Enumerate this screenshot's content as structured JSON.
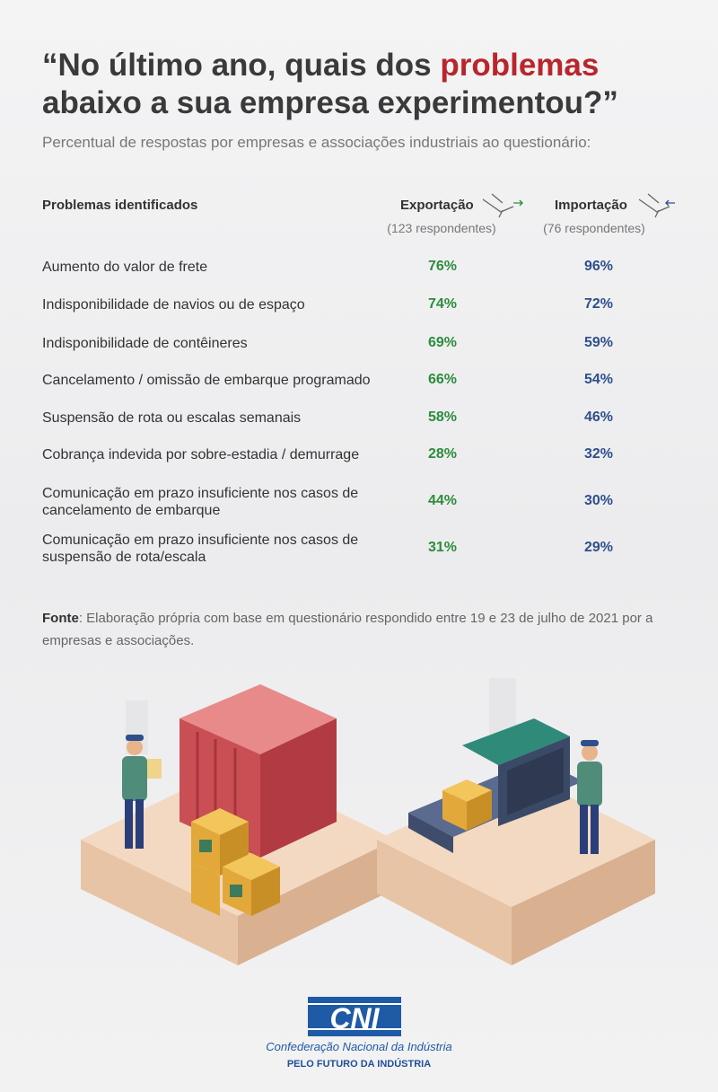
{
  "header": {
    "title_parts": [
      "“No último ano, quais dos ",
      "problemas",
      " abaixo a sua empresa experimentou?”"
    ],
    "subtitle": "Percentual de respostas por empresas e associações industriais ao questionário:"
  },
  "table": {
    "columns": [
      {
        "label": "Problemas identificados"
      },
      {
        "label": "Exportação",
        "note": "(123 respondentes)"
      },
      {
        "label": "Importação",
        "note": "(76 respondentes)"
      }
    ],
    "rows": [
      [
        "Aumento do valor de frete",
        "76%",
        "96%"
      ],
      [
        "Indisponibilidade de navios ou de espaço",
        "74%",
        "72%"
      ],
      [
        "Indisponibilidade de contêineres",
        "69%",
        "59%"
      ],
      [
        "Cancelamento / omissão de embarque programado",
        "66%",
        "54%"
      ],
      [
        "Suspensão de rota ou escalas semanais",
        "58%",
        "46%"
      ],
      [
        "Cobrança indevida por sobre-estadia / demurrage",
        "28%",
        "32%"
      ],
      [
        "Comunicação em prazo insuficiente nos casos de cancelamento de embarque",
        "44%",
        "30%"
      ],
      [
        "Comunicação em prazo insuficiente nos casos de suspensão de rota/escala",
        "31%",
        "29%"
      ]
    ]
  },
  "source": {
    "label": "Fonte",
    "text": ": Elaboração própria com base em questionário respondido entre 19 e 23 de julho de 2021 por a empresas e associações."
  },
  "footer": {
    "logo": "CNI",
    "name": "Confederação Nacional da Indústria",
    "slogan": "PELO FUTURO DA INDÚSTRIA"
  }
}
